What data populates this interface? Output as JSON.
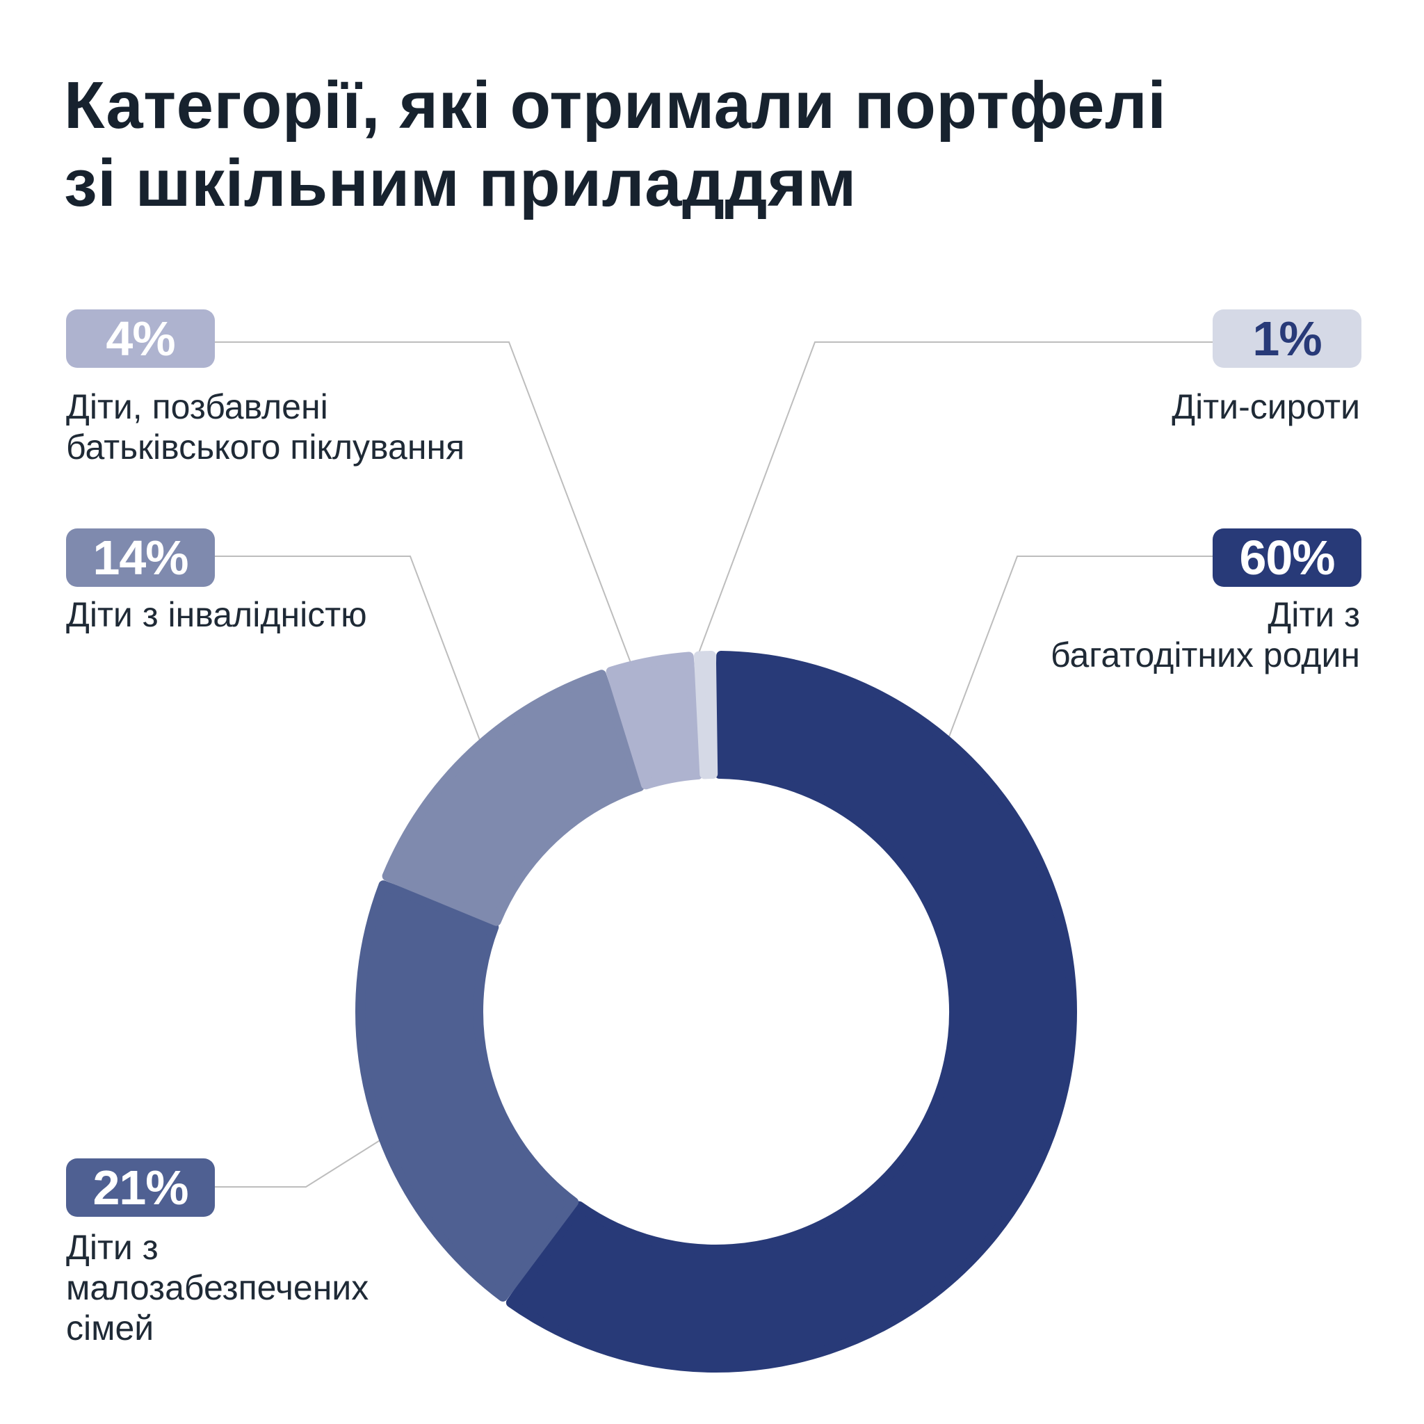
{
  "title_lines": [
    "Категорії, які отримали портфелі",
    "зі шкільним приладдям"
  ],
  "chart_data": {
    "type": "pie",
    "variant": "donut",
    "slices": [
      {
        "value_label": "60%",
        "value": 60,
        "label_lines": [
          "Діти з",
          "багатодітних родин"
        ],
        "color": "#283a78",
        "badge_text_color": "#ffffff"
      },
      {
        "value_label": "21%",
        "value": 21,
        "label_lines": [
          "Діти з",
          "малозабезпечених",
          "сімей"
        ],
        "color": "#4f6092",
        "badge_text_color": "#ffffff"
      },
      {
        "value_label": "14%",
        "value": 14,
        "label_lines": [
          "Діти з інвалідністю"
        ],
        "color": "#7f8aae",
        "badge_text_color": "#ffffff"
      },
      {
        "value_label": "4%",
        "value": 4,
        "label_lines": [
          "Діти, позбавлені",
          "батьківського піклування"
        ],
        "color": "#aeb3cf",
        "badge_text_color": "#ffffff"
      },
      {
        "value_label": "1%",
        "value": 1,
        "label_lines": [
          "Діти-сироти"
        ],
        "color": "#d5d9e6",
        "badge_text_color": "#283a78"
      }
    ],
    "leader_line_color": "#bdbdbd"
  }
}
